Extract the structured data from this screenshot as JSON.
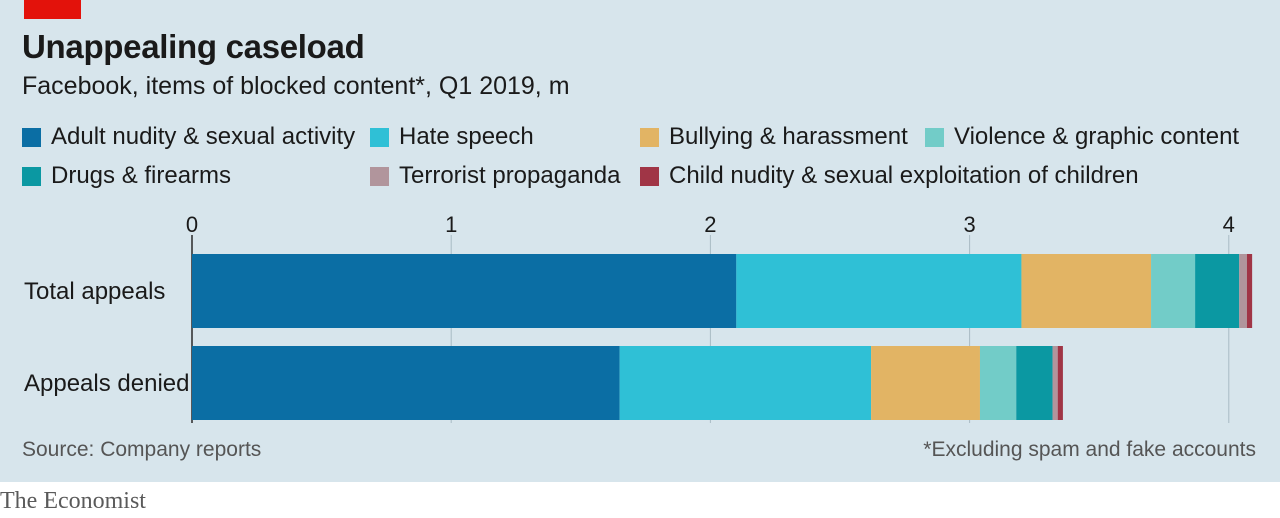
{
  "header": {
    "title": "Unappealing caseload",
    "subtitle": "Facebook, items of blocked content*, Q1 2019, m"
  },
  "legend": [
    {
      "label": "Adult nudity & sexual activity",
      "color": "#0b6ea4"
    },
    {
      "label": "Hate speech",
      "color": "#2fc0d6"
    },
    {
      "label": "Bullying & harassment",
      "color": "#e2b464"
    },
    {
      "label": "Violence & graphic content",
      "color": "#72ccc8"
    },
    {
      "label": "Drugs & firearms",
      "color": "#0b98a2"
    },
    {
      "label": "Terrorist propaganda",
      "color": "#b1959c"
    },
    {
      "label": "Child nudity & sexual exploitation of children",
      "color": "#a03546"
    }
  ],
  "chart_data": {
    "type": "bar",
    "orientation": "horizontal",
    "stacked": true,
    "categories": [
      "Total appeals",
      "Appeals denied"
    ],
    "series": [
      {
        "name": "Adult nudity & sexual activity",
        "values": [
          2.1,
          1.65
        ]
      },
      {
        "name": "Hate speech",
        "values": [
          1.1,
          0.97
        ]
      },
      {
        "name": "Bullying & harassment",
        "values": [
          0.5,
          0.42
        ]
      },
      {
        "name": "Violence & graphic content",
        "values": [
          0.17,
          0.14
        ]
      },
      {
        "name": "Drugs & firearms",
        "values": [
          0.17,
          0.14
        ]
      },
      {
        "name": "Terrorist propaganda",
        "values": [
          0.03,
          0.02
        ]
      },
      {
        "name": "Child nudity & sexual exploitation of children",
        "values": [
          0.02,
          0.02
        ]
      }
    ],
    "xlim": [
      0,
      4.1
    ],
    "xticks": [
      0,
      1,
      2,
      3,
      4
    ],
    "grid": true,
    "title": "Unappealing caseload",
    "subtitle": "Facebook, items of blocked content*, Q1 2019, m"
  },
  "footer": {
    "source": "Source: Company reports",
    "note": "*Excluding spam and fake accounts",
    "brand": "The Economist"
  }
}
